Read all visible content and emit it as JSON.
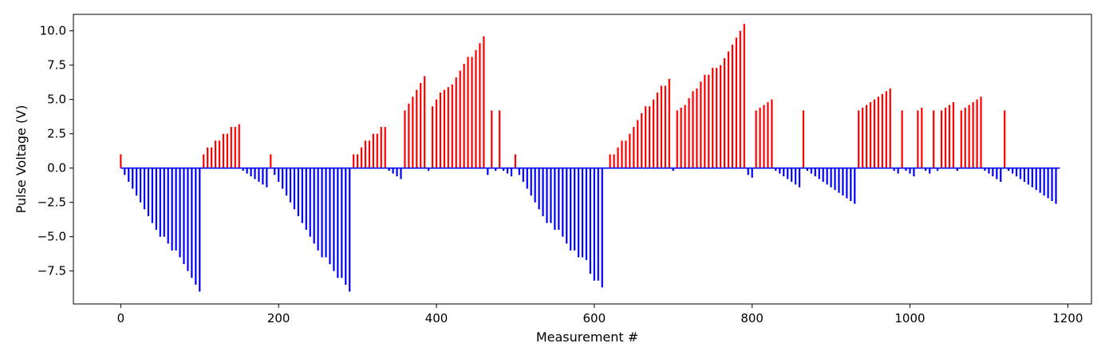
{
  "chart_data": {
    "type": "bar",
    "title": "",
    "xlabel": "Measurement #",
    "ylabel": "Pulse Voltage (V)",
    "xlim": [
      -60,
      1230
    ],
    "ylim": [
      -9.9,
      11.2
    ],
    "x_ticks": [
      0,
      200,
      400,
      600,
      800,
      1000,
      1200
    ],
    "y_ticks": [
      -7.5,
      -5.0,
      -2.5,
      0.0,
      2.5,
      5.0,
      7.5,
      10.0
    ],
    "y_tick_labels": [
      "−7.5",
      "−5.0",
      "−2.5",
      "0.0",
      "2.5",
      "5.0",
      "7.5",
      "10.0"
    ],
    "grid": false,
    "colors": {
      "positive": "#ff0000",
      "negative": "#0000ff",
      "zero_line": "#0000ff"
    },
    "zero_line_range": [
      0,
      1190
    ],
    "series": [
      {
        "values": [
          [
            0,
            1.0
          ],
          [
            5,
            -0.5
          ],
          [
            10,
            -1.0
          ],
          [
            15,
            -1.5
          ],
          [
            20,
            -2.0
          ],
          [
            25,
            -2.5
          ],
          [
            30,
            -3.0
          ],
          [
            35,
            -3.5
          ],
          [
            40,
            -4.0
          ],
          [
            45,
            -4.5
          ],
          [
            50,
            -5.0
          ],
          [
            55,
            -5.0
          ],
          [
            60,
            -5.5
          ],
          [
            65,
            -6.0
          ],
          [
            70,
            -6.0
          ],
          [
            75,
            -6.5
          ],
          [
            80,
            -7.0
          ],
          [
            85,
            -7.5
          ],
          [
            90,
            -8.0
          ],
          [
            95,
            -8.5
          ],
          [
            100,
            -9.0
          ],
          [
            105,
            1.0
          ],
          [
            110,
            1.5
          ],
          [
            115,
            1.5
          ],
          [
            120,
            2.0
          ],
          [
            125,
            2.0
          ],
          [
            130,
            2.5
          ],
          [
            135,
            2.5
          ],
          [
            140,
            3.0
          ],
          [
            145,
            3.0
          ],
          [
            150,
            3.2
          ],
          [
            155,
            -0.2
          ],
          [
            160,
            -0.4
          ],
          [
            165,
            -0.6
          ],
          [
            170,
            -0.8
          ],
          [
            175,
            -1.0
          ],
          [
            180,
            -1.2
          ],
          [
            185,
            -1.4
          ],
          [
            190,
            1.0
          ],
          [
            195,
            -0.5
          ],
          [
            200,
            -1.0
          ],
          [
            205,
            -1.5
          ],
          [
            210,
            -2.0
          ],
          [
            215,
            -2.5
          ],
          [
            220,
            -3.0
          ],
          [
            225,
            -3.5
          ],
          [
            230,
            -4.0
          ],
          [
            235,
            -4.5
          ],
          [
            240,
            -5.0
          ],
          [
            245,
            -5.5
          ],
          [
            250,
            -6.0
          ],
          [
            255,
            -6.5
          ],
          [
            260,
            -6.5
          ],
          [
            265,
            -7.0
          ],
          [
            270,
            -7.5
          ],
          [
            275,
            -8.0
          ],
          [
            280,
            -8.0
          ],
          [
            285,
            -8.5
          ],
          [
            290,
            -9.0
          ],
          [
            295,
            1.0
          ],
          [
            300,
            1.0
          ],
          [
            305,
            1.5
          ],
          [
            310,
            2.0
          ],
          [
            315,
            2.0
          ],
          [
            320,
            2.5
          ],
          [
            325,
            2.5
          ],
          [
            330,
            3.0
          ],
          [
            335,
            3.0
          ],
          [
            340,
            -0.2
          ],
          [
            345,
            -0.4
          ],
          [
            350,
            -0.6
          ],
          [
            355,
            -0.8
          ],
          [
            360,
            4.2
          ],
          [
            365,
            4.7
          ],
          [
            370,
            5.2
          ],
          [
            375,
            5.7
          ],
          [
            380,
            6.2
          ],
          [
            385,
            6.7
          ],
          [
            390,
            -0.2
          ],
          [
            395,
            4.5
          ],
          [
            400,
            5.0
          ],
          [
            405,
            5.5
          ],
          [
            410,
            5.7
          ],
          [
            415,
            5.9
          ],
          [
            420,
            6.1
          ],
          [
            425,
            6.6
          ],
          [
            430,
            7.1
          ],
          [
            435,
            7.6
          ],
          [
            440,
            8.1
          ],
          [
            445,
            8.1
          ],
          [
            450,
            8.6
          ],
          [
            455,
            9.1
          ],
          [
            460,
            9.6
          ],
          [
            465,
            -0.5
          ],
          [
            470,
            4.2
          ],
          [
            475,
            -0.2
          ],
          [
            480,
            4.2
          ],
          [
            485,
            -0.2
          ],
          [
            490,
            -0.4
          ],
          [
            495,
            -0.6
          ],
          [
            500,
            1.0
          ],
          [
            505,
            -0.5
          ],
          [
            510,
            -1.0
          ],
          [
            515,
            -1.5
          ],
          [
            520,
            -2.0
          ],
          [
            525,
            -2.5
          ],
          [
            530,
            -3.0
          ],
          [
            535,
            -3.5
          ],
          [
            540,
            -4.0
          ],
          [
            545,
            -4.0
          ],
          [
            550,
            -4.5
          ],
          [
            555,
            -4.5
          ],
          [
            560,
            -5.0
          ],
          [
            565,
            -5.5
          ],
          [
            570,
            -6.0
          ],
          [
            575,
            -6.0
          ],
          [
            580,
            -6.5
          ],
          [
            585,
            -6.5
          ],
          [
            590,
            -6.7
          ],
          [
            595,
            -7.7
          ],
          [
            600,
            -8.2
          ],
          [
            605,
            -8.2
          ],
          [
            610,
            -8.7
          ],
          [
            620,
            1.0
          ],
          [
            625,
            1.0
          ],
          [
            630,
            1.5
          ],
          [
            635,
            2.0
          ],
          [
            640,
            2.0
          ],
          [
            645,
            2.5
          ],
          [
            650,
            3.0
          ],
          [
            655,
            3.5
          ],
          [
            660,
            4.0
          ],
          [
            665,
            4.5
          ],
          [
            670,
            4.5
          ],
          [
            675,
            5.0
          ],
          [
            680,
            5.5
          ],
          [
            685,
            6.0
          ],
          [
            690,
            6.0
          ],
          [
            695,
            6.5
          ],
          [
            700,
            -0.2
          ],
          [
            705,
            4.2
          ],
          [
            710,
            4.4
          ],
          [
            715,
            4.6
          ],
          [
            720,
            5.1
          ],
          [
            725,
            5.6
          ],
          [
            730,
            5.8
          ],
          [
            735,
            6.3
          ],
          [
            740,
            6.8
          ],
          [
            745,
            6.8
          ],
          [
            750,
            7.3
          ],
          [
            755,
            7.3
          ],
          [
            760,
            7.5
          ],
          [
            765,
            8.0
          ],
          [
            770,
            8.5
          ],
          [
            775,
            9.0
          ],
          [
            780,
            9.5
          ],
          [
            785,
            10.0
          ],
          [
            790,
            10.5
          ],
          [
            795,
            -0.5
          ],
          [
            800,
            -0.7
          ],
          [
            805,
            4.2
          ],
          [
            810,
            4.4
          ],
          [
            815,
            4.6
          ],
          [
            820,
            4.8
          ],
          [
            825,
            5.0
          ],
          [
            830,
            -0.2
          ],
          [
            835,
            -0.4
          ],
          [
            840,
            -0.6
          ],
          [
            845,
            -0.8
          ],
          [
            850,
            -1.0
          ],
          [
            855,
            -1.2
          ],
          [
            860,
            -1.4
          ],
          [
            865,
            4.2
          ],
          [
            870,
            -0.2
          ],
          [
            875,
            -0.4
          ],
          [
            880,
            -0.6
          ],
          [
            885,
            -0.8
          ],
          [
            890,
            -1.0
          ],
          [
            895,
            -1.2
          ],
          [
            900,
            -1.4
          ],
          [
            905,
            -1.6
          ],
          [
            910,
            -1.8
          ],
          [
            915,
            -2.0
          ],
          [
            920,
            -2.2
          ],
          [
            925,
            -2.4
          ],
          [
            930,
            -2.6
          ],
          [
            935,
            4.2
          ],
          [
            940,
            4.4
          ],
          [
            945,
            4.6
          ],
          [
            950,
            4.8
          ],
          [
            955,
            5.0
          ],
          [
            960,
            5.2
          ],
          [
            965,
            5.4
          ],
          [
            970,
            5.6
          ],
          [
            975,
            5.8
          ],
          [
            980,
            -0.2
          ],
          [
            985,
            -0.4
          ],
          [
            990,
            4.2
          ],
          [
            995,
            -0.2
          ],
          [
            1000,
            -0.4
          ],
          [
            1005,
            -0.6
          ],
          [
            1010,
            4.2
          ],
          [
            1015,
            4.4
          ],
          [
            1020,
            -0.2
          ],
          [
            1025,
            -0.4
          ],
          [
            1030,
            4.2
          ],
          [
            1035,
            -0.2
          ],
          [
            1040,
            4.2
          ],
          [
            1045,
            4.4
          ],
          [
            1050,
            4.6
          ],
          [
            1055,
            4.8
          ],
          [
            1060,
            -0.2
          ],
          [
            1065,
            4.2
          ],
          [
            1070,
            4.4
          ],
          [
            1075,
            4.6
          ],
          [
            1080,
            4.8
          ],
          [
            1085,
            5.0
          ],
          [
            1090,
            5.2
          ],
          [
            1095,
            -0.2
          ],
          [
            1100,
            -0.4
          ],
          [
            1105,
            -0.6
          ],
          [
            1110,
            -0.8
          ],
          [
            1115,
            -1.0
          ],
          [
            1120,
            4.2
          ],
          [
            1125,
            -0.2
          ],
          [
            1130,
            -0.4
          ],
          [
            1135,
            -0.6
          ],
          [
            1140,
            -0.8
          ],
          [
            1145,
            -1.0
          ],
          [
            1150,
            -1.2
          ],
          [
            1155,
            -1.4
          ],
          [
            1160,
            -1.6
          ],
          [
            1165,
            -1.8
          ],
          [
            1170,
            -2.0
          ],
          [
            1175,
            -2.2
          ],
          [
            1180,
            -2.4
          ],
          [
            1185,
            -2.6
          ]
        ]
      }
    ]
  }
}
